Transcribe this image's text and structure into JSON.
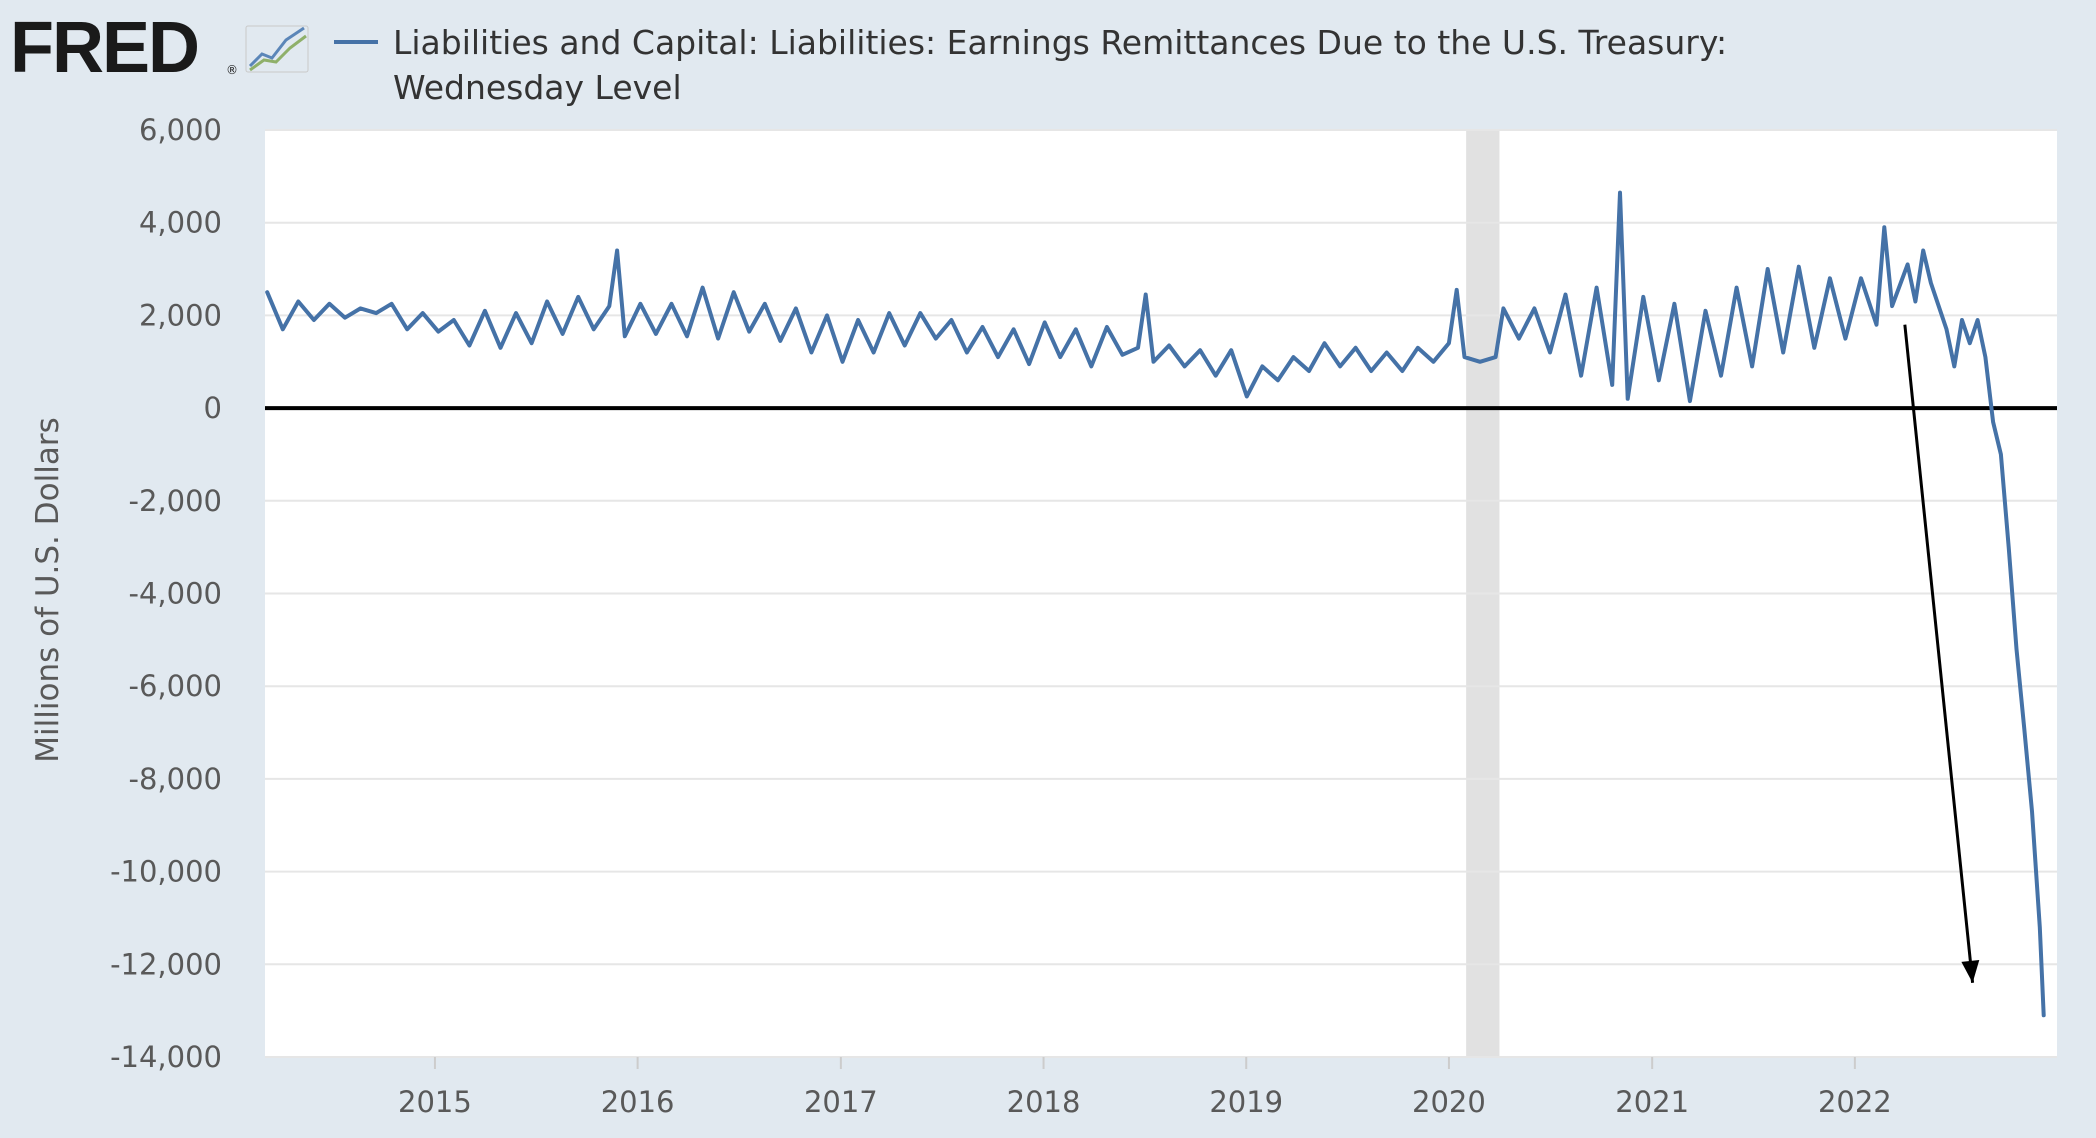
{
  "brand": {
    "logo_text": "FRED",
    "registered_mark": "®",
    "logo_icon": "trend-line-chart-icon"
  },
  "chart_data": {
    "type": "line",
    "title": "",
    "legend": {
      "placement": "top",
      "entries": [
        {
          "name_line1": "Liabilities and Capital: Liabilities: Earnings Remittances Due to the U.S. Treasury:",
          "name_line2": "Wednesday Level",
          "color": "#4572a7"
        }
      ]
    },
    "xlabel": "",
    "ylabel": "Millions of U.S. Dollars",
    "x_ticks": [
      "2015",
      "2016",
      "2017",
      "2018",
      "2019",
      "2020",
      "2021",
      "2022"
    ],
    "y_ticks": [
      "6,000",
      "4,000",
      "2,000",
      "0",
      "-2,000",
      "-4,000",
      "-6,000",
      "-8,000",
      "-10,000",
      "-12,000",
      "-14,000"
    ],
    "xlim": [
      "2014-03",
      "2022-12"
    ],
    "ylim": [
      -14000,
      6000
    ],
    "grid": true,
    "zero_line": true,
    "recession_shading": [
      {
        "start": "2020-02",
        "end": "2020-04"
      }
    ],
    "annotation": {
      "type": "arrow",
      "from": {
        "x": "2022-04",
        "y": 1800
      },
      "to": {
        "x": "2022-08",
        "y": -12400
      },
      "color": "#000000"
    },
    "colors": {
      "series": "#4572a7",
      "recession": "#e1e1e1",
      "grid": "#e6e6e6",
      "zero_line": "#000000",
      "plot_background": "#ffffff",
      "page_background": "#e1e9f0"
    },
    "series": [
      {
        "color": "#4572a7",
        "points": [
          [
            "2014-03-05",
            2500
          ],
          [
            "2014-04-02",
            1700
          ],
          [
            "2014-04-30",
            2300
          ],
          [
            "2014-05-28",
            1900
          ],
          [
            "2014-06-25",
            2250
          ],
          [
            "2014-07-23",
            1950
          ],
          [
            "2014-08-20",
            2150
          ],
          [
            "2014-09-17",
            2050
          ],
          [
            "2014-10-15",
            2250
          ],
          [
            "2014-11-12",
            1700
          ],
          [
            "2014-12-10",
            2050
          ],
          [
            "2015-01-07",
            1650
          ],
          [
            "2015-02-04",
            1900
          ],
          [
            "2015-03-04",
            1350
          ],
          [
            "2015-04-01",
            2100
          ],
          [
            "2015-04-29",
            1300
          ],
          [
            "2015-05-27",
            2050
          ],
          [
            "2015-06-24",
            1400
          ],
          [
            "2015-07-22",
            2300
          ],
          [
            "2015-08-19",
            1600
          ],
          [
            "2015-09-16",
            2400
          ],
          [
            "2015-10-14",
            1700
          ],
          [
            "2015-11-11",
            2200
          ],
          [
            "2015-11-25",
            3400
          ],
          [
            "2015-12-09",
            1550
          ],
          [
            "2016-01-06",
            2250
          ],
          [
            "2016-02-03",
            1600
          ],
          [
            "2016-03-02",
            2250
          ],
          [
            "2016-03-30",
            1550
          ],
          [
            "2016-04-27",
            2600
          ],
          [
            "2016-05-25",
            1500
          ],
          [
            "2016-06-22",
            2500
          ],
          [
            "2016-07-20",
            1650
          ],
          [
            "2016-08-17",
            2250
          ],
          [
            "2016-09-14",
            1450
          ],
          [
            "2016-10-12",
            2150
          ],
          [
            "2016-11-09",
            1200
          ],
          [
            "2016-12-07",
            2000
          ],
          [
            "2017-01-04",
            1000
          ],
          [
            "2017-02-01",
            1900
          ],
          [
            "2017-03-01",
            1200
          ],
          [
            "2017-03-29",
            2050
          ],
          [
            "2017-04-26",
            1350
          ],
          [
            "2017-05-24",
            2050
          ],
          [
            "2017-06-21",
            1500
          ],
          [
            "2017-07-19",
            1900
          ],
          [
            "2017-08-16",
            1200
          ],
          [
            "2017-09-13",
            1750
          ],
          [
            "2017-10-11",
            1100
          ],
          [
            "2017-11-08",
            1700
          ],
          [
            "2017-12-06",
            950
          ],
          [
            "2018-01-03",
            1850
          ],
          [
            "2018-01-31",
            1100
          ],
          [
            "2018-02-28",
            1700
          ],
          [
            "2018-03-28",
            900
          ],
          [
            "2018-04-25",
            1750
          ],
          [
            "2018-05-23",
            1150
          ],
          [
            "2018-06-20",
            1300
          ],
          [
            "2018-07-04",
            2450
          ],
          [
            "2018-07-18",
            1000
          ],
          [
            "2018-08-15",
            1350
          ],
          [
            "2018-09-12",
            900
          ],
          [
            "2018-10-10",
            1250
          ],
          [
            "2018-11-07",
            700
          ],
          [
            "2018-12-05",
            1250
          ],
          [
            "2019-01-02",
            250
          ],
          [
            "2019-01-30",
            900
          ],
          [
            "2019-02-27",
            600
          ],
          [
            "2019-03-27",
            1100
          ],
          [
            "2019-04-24",
            800
          ],
          [
            "2019-05-22",
            1400
          ],
          [
            "2019-06-19",
            900
          ],
          [
            "2019-07-17",
            1300
          ],
          [
            "2019-08-14",
            800
          ],
          [
            "2019-09-11",
            1200
          ],
          [
            "2019-10-09",
            800
          ],
          [
            "2019-11-06",
            1300
          ],
          [
            "2019-12-04",
            1000
          ],
          [
            "2020-01-01",
            1400
          ],
          [
            "2020-01-15",
            2550
          ],
          [
            "2020-01-29",
            1100
          ],
          [
            "2020-02-26",
            1000
          ],
          [
            "2020-03-25",
            1100
          ],
          [
            "2020-04-08",
            2150
          ],
          [
            "2020-05-06",
            1500
          ],
          [
            "2020-06-03",
            2150
          ],
          [
            "2020-07-01",
            1200
          ],
          [
            "2020-07-29",
            2450
          ],
          [
            "2020-08-26",
            700
          ],
          [
            "2020-09-23",
            2600
          ],
          [
            "2020-10-21",
            500
          ],
          [
            "2020-11-04",
            4650
          ],
          [
            "2020-11-18",
            200
          ],
          [
            "2020-12-16",
            2400
          ],
          [
            "2021-01-13",
            600
          ],
          [
            "2021-02-10",
            2250
          ],
          [
            "2021-03-10",
            150
          ],
          [
            "2021-04-07",
            2100
          ],
          [
            "2021-05-05",
            700
          ],
          [
            "2021-06-02",
            2600
          ],
          [
            "2021-06-30",
            900
          ],
          [
            "2021-07-28",
            3000
          ],
          [
            "2021-08-25",
            1200
          ],
          [
            "2021-09-22",
            3050
          ],
          [
            "2021-10-20",
            1300
          ],
          [
            "2021-11-17",
            2800
          ],
          [
            "2021-12-15",
            1500
          ],
          [
            "2022-01-12",
            2800
          ],
          [
            "2022-02-09",
            1800
          ],
          [
            "2022-02-23",
            3900
          ],
          [
            "2022-03-09",
            2200
          ],
          [
            "2022-04-06",
            3100
          ],
          [
            "2022-04-20",
            2300
          ],
          [
            "2022-05-04",
            3400
          ],
          [
            "2022-05-18",
            2700
          ],
          [
            "2022-06-01",
            2200
          ],
          [
            "2022-06-15",
            1700
          ],
          [
            "2022-06-29",
            900
          ],
          [
            "2022-07-13",
            1900
          ],
          [
            "2022-07-27",
            1400
          ],
          [
            "2022-08-10",
            1900
          ],
          [
            "2022-08-24",
            1100
          ],
          [
            "2022-09-07",
            -300
          ],
          [
            "2022-09-21",
            -1000
          ],
          [
            "2022-10-05",
            -3000
          ],
          [
            "2022-10-19",
            -5200
          ],
          [
            "2022-11-02",
            -6900
          ],
          [
            "2022-11-16",
            -8700
          ],
          [
            "2022-11-30",
            -11200
          ],
          [
            "2022-12-07",
            -13100
          ]
        ]
      }
    ]
  }
}
